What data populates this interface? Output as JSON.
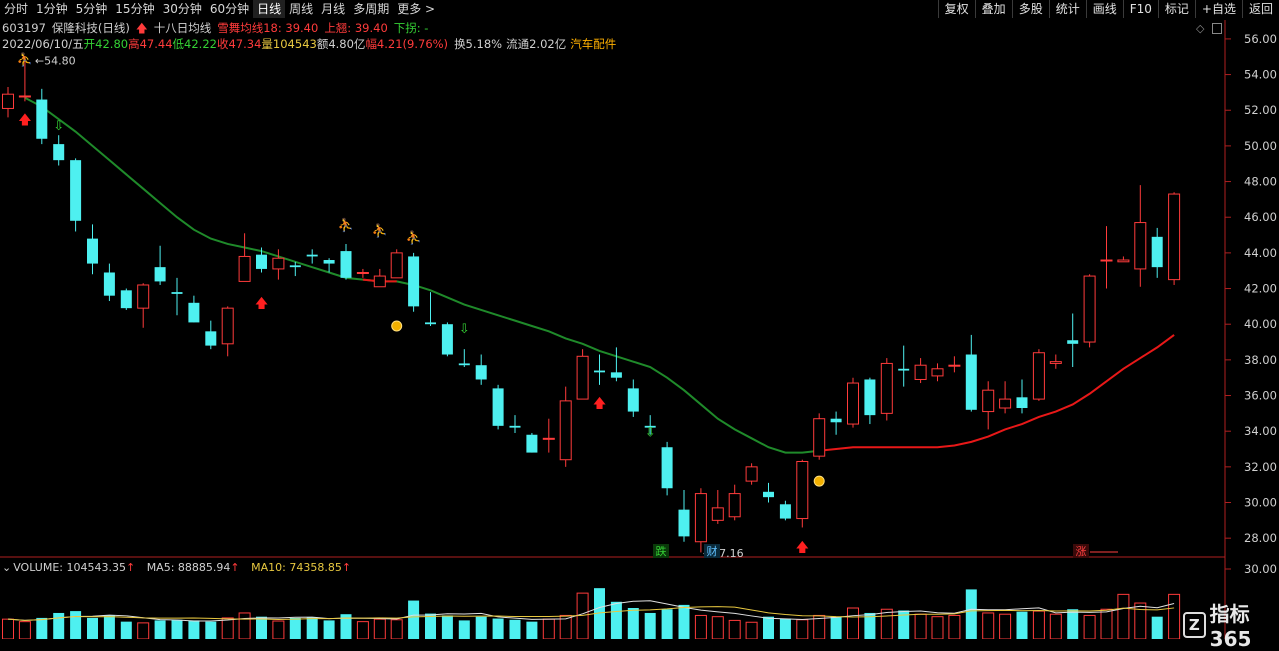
{
  "periods": [
    "分时",
    "1分钟",
    "5分钟",
    "15分钟",
    "30分钟",
    "60分钟",
    "日线",
    "周线",
    "月线",
    "多周期",
    "更多 >"
  ],
  "active_period": "日线",
  "toolbar": [
    "复权",
    "叠加",
    "多股",
    "统计",
    "画线",
    "F10",
    "标记",
    "+自选",
    "返回"
  ],
  "header": {
    "code": "603197",
    "name": "保隆科技(日线)",
    "indicator": "十八日均线",
    "snow": "雪舞均线18: 39.40",
    "up": "上翘: 39.40",
    "down": "下拐: -"
  },
  "quote": {
    "date": "2022/06/10/五",
    "open": "开42.80",
    "high": "高47.44",
    "low": "低42.22",
    "close": "收47.34",
    "vol": "量104543",
    "amount": "额4.80亿",
    "change": "幅4.21(9.76%)",
    "turnover": "换5.18%",
    "float": "流通2.02亿",
    "sector": "汽车配件"
  },
  "volume_header": {
    "volume": "VOLUME: 104543.35",
    "ma5": "MA5: 88885.94",
    "ma10": "MA10: 74358.85"
  },
  "annotations": {
    "high_label": "54.80",
    "low_label": "27.16",
    "die": "跌",
    "cai": "财",
    "jia": "涨"
  },
  "logo": "指标365",
  "colors": {
    "up": "#ff3b3b",
    "down": "#4ef0f0",
    "ma_green": "#1f8a2a",
    "ma_red": "#e81818"
  },
  "chart_data": {
    "type": "candlestick",
    "title": "603197 保隆科技(日线)",
    "ylim": [
      27,
      56.5
    ],
    "yticks": [
      "56.00",
      "54.00",
      "52.00",
      "50.00",
      "48.00",
      "46.00",
      "44.00",
      "42.00",
      "40.00",
      "38.00",
      "36.00",
      "34.00",
      "32.00",
      "30.00",
      "28.00"
    ],
    "vol_tick": "30.00",
    "candles": [
      [
        52.1,
        52.9,
        53.3,
        51.6
      ],
      [
        52.8,
        52.8,
        54.8,
        52.5
      ],
      [
        52.6,
        50.4,
        53.2,
        50.1
      ],
      [
        50.1,
        49.2,
        50.6,
        48.9
      ],
      [
        49.2,
        45.8,
        49.3,
        45.2
      ],
      [
        44.8,
        43.4,
        45.6,
        42.8
      ],
      [
        42.9,
        41.6,
        43.4,
        41.3
      ],
      [
        41.9,
        40.9,
        42.0,
        40.8
      ],
      [
        40.9,
        42.2,
        42.3,
        39.8
      ],
      [
        43.2,
        42.4,
        44.4,
        42.2
      ],
      [
        41.8,
        41.7,
        42.6,
        40.5
      ],
      [
        41.2,
        40.1,
        41.6,
        40.1
      ],
      [
        39.6,
        38.8,
        40.2,
        38.6
      ],
      [
        38.9,
        40.9,
        41.0,
        38.2
      ],
      [
        42.4,
        43.8,
        45.1,
        42.4
      ],
      [
        43.9,
        43.1,
        44.3,
        42.9
      ],
      [
        43.1,
        43.7,
        44.2,
        42.5
      ],
      [
        43.3,
        43.2,
        43.5,
        42.7
      ],
      [
        43.9,
        43.8,
        44.2,
        43.4
      ],
      [
        43.6,
        43.4,
        43.7,
        42.9
      ],
      [
        44.1,
        42.6,
        44.5,
        42.5
      ],
      [
        42.9,
        42.9,
        43.1,
        42.6
      ],
      [
        42.1,
        42.7,
        43.1,
        42.4
      ],
      [
        42.6,
        44.0,
        44.2,
        42.6
      ],
      [
        43.8,
        41.0,
        44.0,
        40.7
      ],
      [
        40.1,
        40.0,
        41.8,
        39.9
      ],
      [
        40.0,
        38.3,
        40.1,
        38.2
      ],
      [
        37.8,
        37.7,
        38.6,
        37.6
      ],
      [
        37.7,
        36.9,
        38.3,
        36.6
      ],
      [
        36.4,
        34.3,
        36.6,
        34.1
      ],
      [
        34.3,
        34.2,
        34.9,
        33.9
      ],
      [
        33.8,
        32.8,
        33.9,
        32.8
      ],
      [
        33.6,
        33.6,
        34.7,
        32.8
      ],
      [
        32.4,
        35.7,
        36.5,
        32.0
      ],
      [
        35.8,
        38.2,
        38.6,
        35.8
      ],
      [
        37.4,
        37.3,
        38.3,
        36.6
      ],
      [
        37.3,
        37.0,
        38.7,
        36.8
      ],
      [
        36.4,
        35.1,
        36.9,
        34.8
      ],
      [
        34.3,
        34.2,
        34.9,
        33.8
      ],
      [
        33.1,
        30.8,
        33.4,
        30.4
      ],
      [
        29.6,
        28.1,
        30.7,
        27.8
      ],
      [
        27.8,
        30.5,
        30.8,
        27.2
      ],
      [
        29.0,
        29.7,
        30.7,
        28.8
      ],
      [
        29.2,
        30.5,
        31.0,
        29.0
      ],
      [
        31.2,
        32.0,
        32.2,
        31.0
      ],
      [
        30.6,
        30.3,
        31.1,
        30.0
      ],
      [
        29.9,
        29.1,
        30.1,
        29.0
      ],
      [
        29.1,
        32.3,
        32.4,
        28.6
      ],
      [
        32.6,
        34.7,
        35.0,
        32.4
      ],
      [
        34.7,
        34.5,
        35.1,
        33.8
      ],
      [
        34.4,
        36.7,
        37.0,
        34.2
      ],
      [
        36.9,
        34.9,
        37.0,
        34.4
      ],
      [
        35.0,
        37.8,
        38.1,
        34.6
      ],
      [
        37.5,
        37.4,
        38.8,
        36.5
      ],
      [
        36.9,
        37.7,
        38.1,
        36.7
      ],
      [
        37.1,
        37.5,
        37.8,
        36.8
      ],
      [
        37.7,
        37.7,
        38.2,
        37.3
      ],
      [
        38.3,
        35.2,
        39.4,
        35.1
      ],
      [
        35.1,
        36.3,
        36.8,
        34.1
      ],
      [
        35.3,
        35.8,
        36.8,
        35.0
      ],
      [
        35.9,
        35.3,
        36.9,
        35.0
      ],
      [
        35.8,
        38.4,
        38.6,
        35.7
      ],
      [
        37.8,
        37.9,
        38.3,
        37.5
      ],
      [
        39.1,
        38.9,
        40.6,
        37.6
      ],
      [
        39.0,
        42.7,
        42.8,
        38.7
      ],
      [
        43.6,
        43.6,
        45.5,
        42.0
      ],
      [
        43.5,
        43.6,
        43.8,
        43.5
      ],
      [
        43.1,
        45.7,
        47.8,
        42.1
      ],
      [
        44.9,
        43.2,
        45.4,
        42.6
      ],
      [
        42.5,
        47.3,
        47.4,
        42.2
      ]
    ],
    "volume_ratio": [
      0.32,
      0.28,
      0.34,
      0.42,
      0.45,
      0.34,
      0.38,
      0.28,
      0.26,
      0.3,
      0.31,
      0.3,
      0.28,
      0.34,
      0.42,
      0.36,
      0.29,
      0.34,
      0.35,
      0.3,
      0.4,
      0.28,
      0.32,
      0.31,
      0.62,
      0.41,
      0.38,
      0.3,
      0.36,
      0.33,
      0.31,
      0.28,
      0.32,
      0.38,
      0.74,
      0.82,
      0.6,
      0.5,
      0.42,
      0.48,
      0.55,
      0.38,
      0.36,
      0.3,
      0.27,
      0.36,
      0.33,
      0.31,
      0.38,
      0.36,
      0.5,
      0.42,
      0.48,
      0.46,
      0.4,
      0.36,
      0.38,
      0.8,
      0.42,
      0.4,
      0.44,
      0.45,
      0.4,
      0.48,
      0.38,
      0.48,
      0.72,
      0.58,
      0.36,
      0.72
    ],
    "ma18": [
      null,
      52.7,
      52.2,
      51.5,
      50.8,
      50.0,
      49.2,
      48.4,
      47.6,
      46.8,
      46.0,
      45.3,
      44.8,
      44.5,
      44.3,
      44.1,
      43.8,
      43.5,
      43.2,
      42.9,
      42.6,
      42.5,
      42.4,
      42.4,
      42.2,
      41.9,
      41.5,
      41.1,
      40.8,
      40.5,
      40.2,
      39.9,
      39.6,
      39.2,
      38.9,
      38.5,
      38.2,
      37.9,
      37.6,
      37.0,
      36.3,
      35.5,
      34.7,
      34.1,
      33.6,
      33.1,
      32.8,
      32.8,
      32.9,
      33.0,
      33.1,
      33.1,
      33.1,
      33.1,
      33.1,
      33.1,
      33.2,
      33.4,
      33.7,
      34.1,
      34.4,
      34.8,
      35.1,
      35.5,
      36.1,
      36.8,
      37.5,
      38.1,
      38.7,
      39.4
    ],
    "ma18_red_from": 48,
    "ma18_red_segments": [
      [
        21,
        23
      ]
    ]
  }
}
